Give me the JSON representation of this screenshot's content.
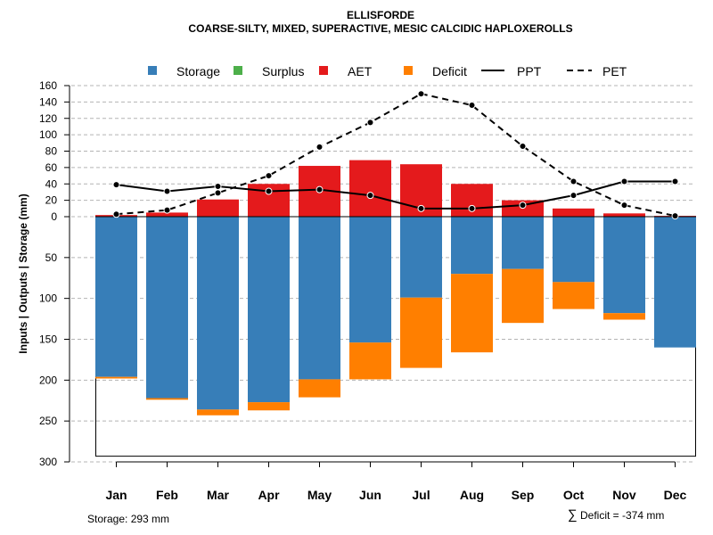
{
  "chart_data": {
    "type": "bar",
    "title": "ELLISFORDE",
    "subtitle": "COARSE-SILTY, MIXED, SUPERACTIVE, MESIC CALCIDIC HAPLOXEROLLS",
    "ylabel": "Inputs | Outputs | Storage    (mm)",
    "categories": [
      "Jan",
      "Feb",
      "Mar",
      "Apr",
      "May",
      "Jun",
      "Jul",
      "Aug",
      "Sep",
      "Oct",
      "Nov",
      "Dec"
    ],
    "upper_ticks": [
      "0",
      "20",
      "40",
      "60",
      "80",
      "100",
      "120",
      "140",
      "160"
    ],
    "lower_ticks": [
      "50",
      "100",
      "150",
      "200",
      "250",
      "300"
    ],
    "upper_ylim": [
      0,
      160
    ],
    "lower_ylim": [
      0,
      300
    ],
    "series": [
      {
        "name": "Storage",
        "color": "#377eb8",
        "values": [
          196,
          222,
          236,
          227,
          199,
          154,
          99,
          70,
          64,
          80,
          118,
          160
        ]
      },
      {
        "name": "Surplus",
        "color": "#4daf4a",
        "values": [
          0,
          0,
          0,
          0,
          0,
          0,
          0,
          0,
          0,
          0,
          0,
          0
        ]
      },
      {
        "name": "AET",
        "color": "#e41a1c",
        "values": [
          2,
          5,
          21,
          40,
          62,
          69,
          64,
          40,
          20,
          10,
          4,
          1
        ]
      },
      {
        "name": "Deficit",
        "color": "#ff7f00",
        "values": [
          2,
          2,
          7,
          10,
          22,
          45,
          86,
          96,
          66,
          33,
          8,
          0
        ]
      },
      {
        "name": "PPT",
        "color": "#000000",
        "values": [
          39,
          31,
          37,
          31,
          33,
          26,
          10,
          10,
          14,
          26,
          43,
          43
        ]
      },
      {
        "name": "PET",
        "color": "#000000",
        "values": [
          3,
          8,
          29,
          50,
          85,
          115,
          150,
          136,
          86,
          43,
          14,
          1
        ]
      }
    ],
    "storage_capacity": 293,
    "legend_position": "top"
  },
  "legend": {
    "storage": "Storage",
    "surplus": "Surplus",
    "aet": "AET",
    "deficit": "Deficit",
    "ppt": "PPT",
    "pet": "PET"
  },
  "footer": {
    "storage_note": "Storage: 293 mm",
    "deficit_symbol": "∑",
    "deficit_note": "Deficit = -374 mm"
  }
}
